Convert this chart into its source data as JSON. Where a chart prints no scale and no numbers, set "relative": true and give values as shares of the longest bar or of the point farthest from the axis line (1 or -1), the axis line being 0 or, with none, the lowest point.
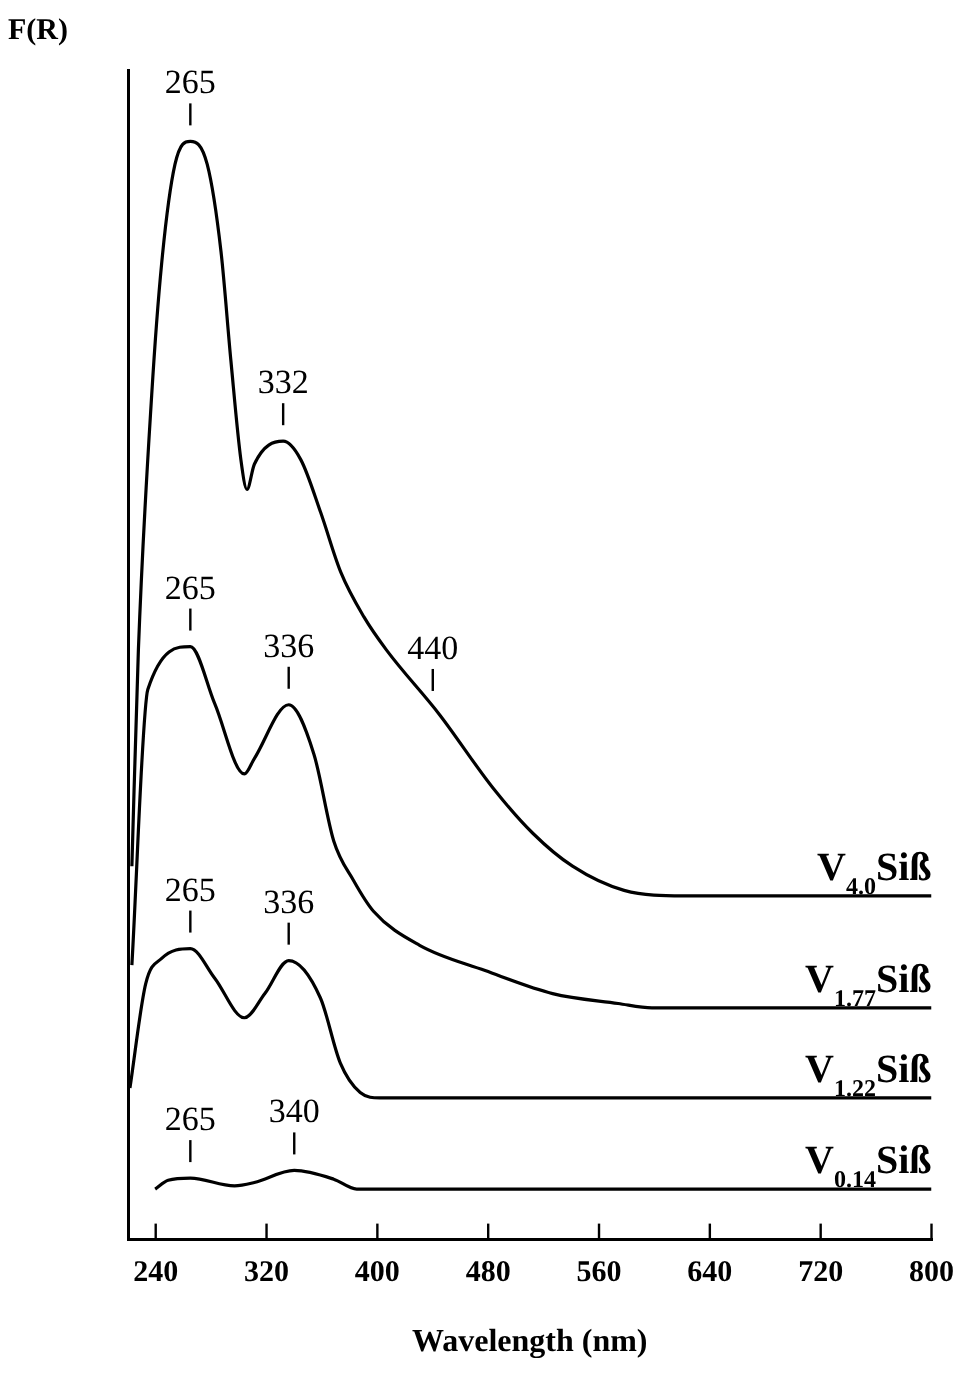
{
  "chart_data": {
    "type": "line",
    "relative": true,
    "ylabel": "F(R)",
    "xlabel": "Wavelength (nm)",
    "xlim": [
      220,
      800
    ],
    "xticks": [
      240,
      320,
      400,
      480,
      560,
      640,
      720,
      800
    ],
    "grid": false,
    "legend": false,
    "marker": "none",
    "line_style": "solid",
    "series": [
      {
        "name": "V$_{4.0}$Siß",
        "color": "#000000",
        "x": [
          222.8,
          227.5,
          237.1,
          244.3,
          253.9,
          265,
          277.2,
          287.1,
          294.3,
          301.5,
          305.9,
          311.2,
          332,
          344.8,
          359.1,
          373.5,
          390.3,
          406.5,
          444.9,
          483.6,
          512.2,
          540.9,
          578.1,
          621,
          800
        ],
        "values": [
          0.34,
          0.537,
          0.769,
          0.889,
          0.979,
          1,
          0.979,
          0.9,
          0.8,
          0.71,
          0.683,
          0.706,
          0.727,
          0.71,
          0.662,
          0.608,
          0.567,
          0.537,
          0.478,
          0.411,
          0.37,
          0.34,
          0.318,
          0.313,
          0.313
        ]
      },
      {
        "name": "V$_{1.77}$Siß",
        "color": "#000000",
        "x": [
          222.8,
          234.3,
          265,
          282.6,
          304,
          311.2,
          336,
          354.2,
          368.5,
          382.8,
          397.2,
          430.5,
          477.8,
          526.5,
          573.8,
          598.2,
          800
        ],
        "values": [
          0.25,
          0.501,
          0.54,
          0.488,
          0.424,
          0.438,
          0.487,
          0.442,
          0.363,
          0.327,
          0.299,
          0.268,
          0.245,
          0.224,
          0.215,
          0.211,
          0.211
        ]
      },
      {
        "name": "V$_{1.22}$Siß",
        "color": "#000000",
        "x": [
          221.4,
          232.8,
          244.3,
          265,
          282.6,
          304,
          318.8,
          336,
          358.9,
          373.2,
          387.6,
          401.9,
          800
        ],
        "values": [
          0.138,
          0.233,
          0.256,
          0.265,
          0.238,
          0.202,
          0.224,
          0.254,
          0.22,
          0.161,
          0.134,
          0.129,
          0.129
        ]
      },
      {
        "name": "V$_{0.14}$Siß",
        "color": "#000000",
        "x": [
          239.6,
          249,
          265,
          296.9,
          311.2,
          340,
          368.5,
          385.1,
          800
        ],
        "values": [
          0.046,
          0.054,
          0.056,
          0.049,
          0.052,
          0.063,
          0.055,
          0.046,
          0.046
        ]
      }
    ],
    "annotations": [
      {
        "text": "265",
        "x": 265,
        "y": 1
      },
      {
        "text": "332",
        "x": 332,
        "y": 0.727
      },
      {
        "text": "265",
        "x": 265,
        "y": 0.54
      },
      {
        "text": "336",
        "x": 336,
        "y": 0.487
      },
      {
        "text": "440",
        "x": 440,
        "y": 0.485
      },
      {
        "text": "265",
        "x": 265,
        "y": 0.265
      },
      {
        "text": "336",
        "x": 336,
        "y": 0.254
      },
      {
        "text": "265",
        "x": 265,
        "y": 0.056
      },
      {
        "text": "340",
        "x": 340,
        "y": 0.063
      }
    ]
  }
}
